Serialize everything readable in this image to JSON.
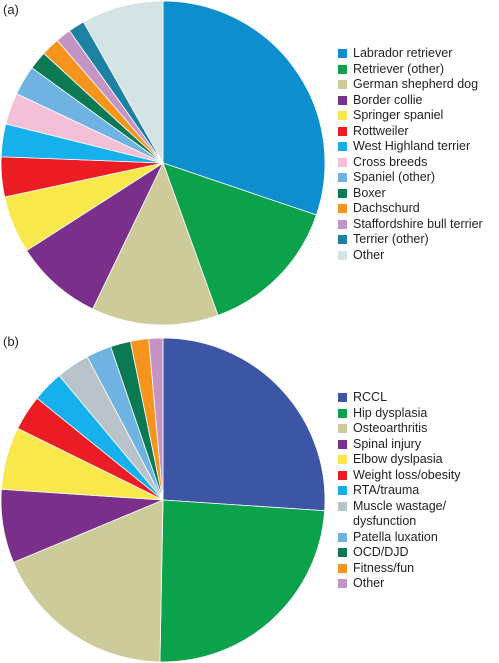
{
  "chart_data": [
    {
      "type": "pie",
      "panel_label": "(a)",
      "legend_position": "right",
      "slices": [
        {
          "label": "Labrador retriever",
          "value": 29.6,
          "color": "#0d8fcf"
        },
        {
          "label": "Retriever (other)",
          "value": 14.0,
          "color": "#0ca24c"
        },
        {
          "label": "German shepherd dog",
          "value": 12.4,
          "color": "#cdcb9a"
        },
        {
          "label": "Border collie",
          "value": 8.6,
          "color": "#7a2f8a"
        },
        {
          "label": "Springer spaniel",
          "value": 5.6,
          "color": "#f9e84b"
        },
        {
          "label": "Rottweiler",
          "value": 3.9,
          "color": "#ec1c24"
        },
        {
          "label": "West Highland terrier",
          "value": 3.2,
          "color": "#16b1ec"
        },
        {
          "label": "Cross breeds",
          "value": 3.1,
          "color": "#f4c0d8"
        },
        {
          "label": "Spaniel (other)",
          "value": 2.9,
          "color": "#6fb3e3"
        },
        {
          "label": "Boxer",
          "value": 1.8,
          "color": "#0b7a53"
        },
        {
          "label": "Dachschurd",
          "value": 1.8,
          "color": "#f7941d"
        },
        {
          "label": "Staffordshire bull terrier",
          "value": 1.5,
          "color": "#c495c4"
        },
        {
          "label": "Terrier (other)",
          "value": 1.6,
          "color": "#1c81a3"
        },
        {
          "label": "Other",
          "value": 8.0,
          "color": "#d4e3e3"
        }
      ]
    },
    {
      "type": "pie",
      "panel_label": "(b)",
      "legend_position": "right",
      "slices": [
        {
          "label": "RCCL",
          "value": 25.9,
          "color": "#3c55a5"
        },
        {
          "label": "Hip dysplasia",
          "value": 24.1,
          "color": "#0ca24c"
        },
        {
          "label": "Osteoarthritis",
          "value": 18.3,
          "color": "#cdcb9a"
        },
        {
          "label": "Spinal injury",
          "value": 7.3,
          "color": "#7a2f8a"
        },
        {
          "label": "Elbow dyslpasia",
          "value": 6.2,
          "color": "#f9e84b"
        },
        {
          "label": "Weight loss/obesity",
          "value": 3.5,
          "color": "#ec1c24"
        },
        {
          "label": "RTA/trauma",
          "value": 3.1,
          "color": "#16b1ec"
        },
        {
          "label": "Muscle wastage/ dysfunction",
          "value": 3.3,
          "color": "#b9c4ca"
        },
        {
          "label": "Patella luxation",
          "value": 2.5,
          "color": "#6fb3e3"
        },
        {
          "label": "OCD/DJD",
          "value": 2.0,
          "color": "#0b7a53"
        },
        {
          "label": "Fitness/fun",
          "value": 1.8,
          "color": "#f7941d"
        },
        {
          "label": "Other",
          "value": 1.4,
          "color": "#c495c4"
        }
      ]
    }
  ]
}
